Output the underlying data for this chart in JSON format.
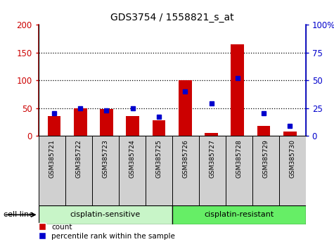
{
  "title": "GDS3754 / 1558821_s_at",
  "samples": [
    "GSM385721",
    "GSM385722",
    "GSM385723",
    "GSM385724",
    "GSM385725",
    "GSM385726",
    "GSM385727",
    "GSM385728",
    "GSM385729",
    "GSM385730"
  ],
  "counts": [
    35,
    50,
    48,
    35,
    28,
    100,
    5,
    165,
    18,
    8
  ],
  "percentile_ranks": [
    20,
    25,
    23,
    25,
    17,
    40,
    29,
    52,
    20,
    9
  ],
  "group_split": 5,
  "group_labels": [
    "cisplatin-sensitive",
    "cisplatin-resistant"
  ],
  "group_color_sensitive": "#c8f5c8",
  "group_color_resistant": "#66ee66",
  "sample_box_color": "#d0d0d0",
  "bar_color": "#cc0000",
  "percentile_color": "#0000cc",
  "left_ylim": [
    0,
    200
  ],
  "right_ylim": [
    0,
    100
  ],
  "left_yticks": [
    0,
    50,
    100,
    150,
    200
  ],
  "right_yticks": [
    0,
    25,
    50,
    75,
    100
  ],
  "left_ytick_labels": [
    "0",
    "50",
    "100",
    "150",
    "200"
  ],
  "right_ytick_labels": [
    "0",
    "25",
    "50",
    "75",
    "100%"
  ],
  "right_ytick_labels_top": "100%",
  "cell_line_label": "cell line",
  "legend_count_label": "count",
  "legend_percentile_label": "percentile rank within the sample",
  "background_color": "#ffffff",
  "dotted_lines": [
    50,
    100,
    150
  ]
}
